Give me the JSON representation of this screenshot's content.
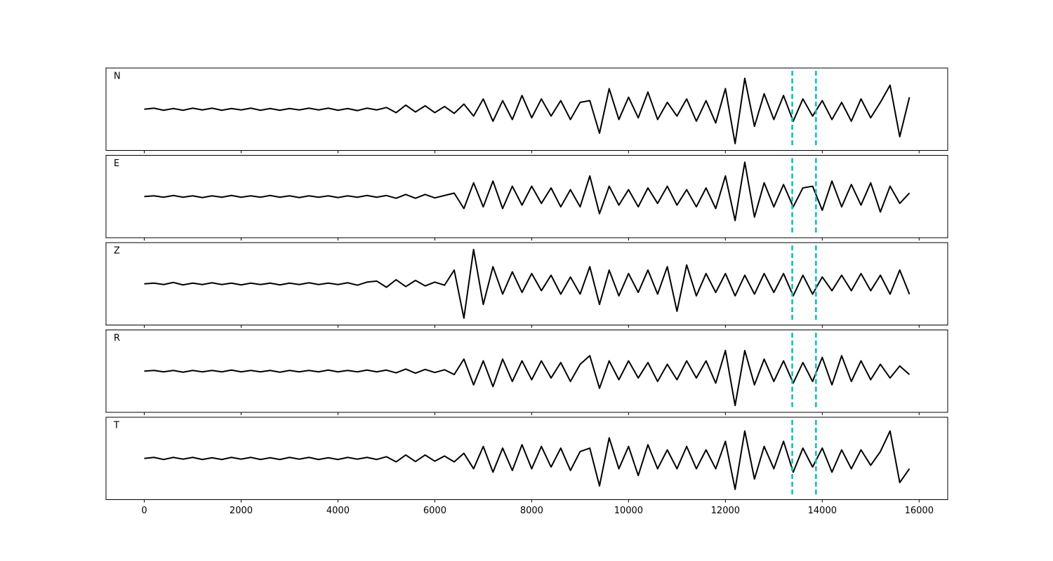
{
  "chart_data": {
    "type": "line",
    "x": [
      0,
      200,
      400,
      600,
      800,
      1000,
      1200,
      1400,
      1600,
      1800,
      2000,
      2200,
      2400,
      2600,
      2800,
      3000,
      3200,
      3400,
      3600,
      3800,
      4000,
      4200,
      4400,
      4600,
      4800,
      5000,
      5200,
      5400,
      5600,
      5800,
      6000,
      6200,
      6400,
      6600,
      6800,
      7000,
      7200,
      7400,
      7600,
      7800,
      8000,
      8200,
      8400,
      8600,
      8800,
      9000,
      9200,
      9400,
      9600,
      9800,
      10000,
      10200,
      10400,
      10600,
      10800,
      11000,
      11200,
      11400,
      11600,
      11800,
      12000,
      12200,
      12400,
      12600,
      12800,
      13000,
      13200,
      13400,
      13600,
      13800,
      14000,
      14200,
      14400,
      14600,
      14800,
      15000,
      15200,
      15400,
      15600,
      15800
    ],
    "series": [
      {
        "name": "N",
        "color": "#000000",
        "values": [
          0.0,
          0.03,
          -0.03,
          0.02,
          -0.03,
          0.03,
          -0.02,
          0.03,
          -0.03,
          0.02,
          -0.02,
          0.03,
          -0.03,
          0.02,
          -0.03,
          0.02,
          -0.02,
          0.03,
          -0.02,
          0.03,
          -0.03,
          0.02,
          -0.04,
          0.03,
          -0.02,
          0.05,
          -0.1,
          0.12,
          -0.08,
          0.1,
          -0.1,
          0.08,
          -0.12,
          0.15,
          -0.2,
          0.3,
          -0.35,
          0.25,
          -0.3,
          0.4,
          -0.25,
          0.3,
          -0.2,
          0.25,
          -0.3,
          0.2,
          0.25,
          -0.7,
          0.6,
          -0.3,
          0.35,
          -0.25,
          0.5,
          -0.3,
          0.2,
          -0.2,
          0.3,
          -0.35,
          0.25,
          -0.4,
          0.6,
          -1.0,
          0.9,
          -0.5,
          0.45,
          -0.3,
          0.4,
          -0.35,
          0.3,
          -0.2,
          0.25,
          -0.3,
          0.2,
          -0.35,
          0.3,
          -0.25,
          0.2,
          0.7,
          -0.8,
          0.35
        ]
      },
      {
        "name": "E",
        "color": "#000000",
        "values": [
          0.0,
          0.02,
          -0.02,
          0.03,
          -0.02,
          0.02,
          -0.03,
          0.02,
          -0.02,
          0.03,
          -0.02,
          0.02,
          -0.02,
          0.03,
          -0.02,
          0.02,
          -0.03,
          0.02,
          -0.02,
          0.02,
          -0.03,
          0.02,
          -0.02,
          0.03,
          -0.02,
          0.03,
          -0.05,
          0.06,
          -0.05,
          0.06,
          -0.04,
          0.03,
          0.1,
          -0.35,
          0.4,
          -0.3,
          0.45,
          -0.35,
          0.3,
          -0.25,
          0.3,
          -0.2,
          0.25,
          -0.3,
          0.2,
          -0.3,
          0.6,
          -0.5,
          0.3,
          -0.25,
          0.2,
          -0.3,
          0.25,
          -0.2,
          0.3,
          -0.25,
          0.2,
          -0.3,
          0.25,
          -0.35,
          0.6,
          -0.7,
          1.0,
          -0.6,
          0.4,
          -0.3,
          0.35,
          -0.3,
          0.25,
          0.3,
          -0.4,
          0.45,
          -0.3,
          0.35,
          -0.25,
          0.4,
          -0.45,
          0.3,
          -0.2,
          0.1
        ]
      },
      {
        "name": "Z",
        "color": "#000000",
        "values": [
          0.0,
          0.02,
          -0.02,
          0.04,
          -0.03,
          0.02,
          -0.02,
          0.03,
          -0.02,
          0.02,
          -0.03,
          0.02,
          -0.02,
          0.02,
          -0.03,
          0.02,
          -0.02,
          0.03,
          -0.02,
          0.02,
          -0.02,
          0.03,
          -0.04,
          0.05,
          0.08,
          -0.1,
          0.12,
          -0.08,
          0.1,
          -0.06,
          0.05,
          -0.04,
          0.4,
          -1.0,
          1.0,
          -0.6,
          0.5,
          -0.3,
          0.35,
          -0.25,
          0.3,
          -0.2,
          0.25,
          -0.3,
          0.2,
          -0.3,
          0.5,
          -0.6,
          0.4,
          -0.35,
          0.3,
          -0.25,
          0.4,
          -0.3,
          0.5,
          -0.8,
          0.55,
          -0.35,
          0.3,
          -0.25,
          0.3,
          -0.35,
          0.25,
          -0.3,
          0.3,
          -0.25,
          0.3,
          -0.35,
          0.25,
          -0.3,
          0.2,
          -0.2,
          0.25,
          -0.2,
          0.3,
          -0.2,
          0.25,
          -0.3,
          0.4,
          -0.3
        ]
      },
      {
        "name": "R",
        "color": "#000000",
        "values": [
          0.0,
          0.02,
          -0.02,
          0.02,
          -0.03,
          0.02,
          -0.02,
          0.02,
          -0.02,
          0.03,
          -0.02,
          0.02,
          -0.02,
          0.02,
          -0.03,
          0.02,
          -0.02,
          0.02,
          -0.02,
          0.03,
          -0.02,
          0.02,
          -0.02,
          0.03,
          -0.02,
          0.03,
          -0.05,
          0.06,
          -0.06,
          0.05,
          -0.04,
          0.04,
          -0.1,
          0.35,
          -0.4,
          0.3,
          -0.45,
          0.35,
          -0.3,
          0.3,
          -0.25,
          0.3,
          -0.2,
          0.25,
          -0.3,
          0.2,
          0.45,
          -0.5,
          0.3,
          -0.25,
          0.3,
          -0.2,
          0.25,
          -0.3,
          0.2,
          -0.25,
          0.3,
          -0.2,
          0.3,
          -0.35,
          0.6,
          -1.0,
          0.6,
          -0.4,
          0.35,
          -0.3,
          0.3,
          -0.35,
          0.25,
          -0.3,
          0.4,
          -0.4,
          0.45,
          -0.3,
          0.3,
          -0.25,
          0.2,
          -0.2,
          0.15,
          -0.1
        ]
      },
      {
        "name": "T",
        "color": "#000000",
        "values": [
          0.0,
          0.03,
          -0.03,
          0.03,
          -0.02,
          0.03,
          -0.03,
          0.02,
          -0.03,
          0.03,
          -0.02,
          0.03,
          -0.03,
          0.02,
          -0.03,
          0.03,
          -0.02,
          0.03,
          -0.03,
          0.02,
          -0.03,
          0.03,
          -0.02,
          0.03,
          -0.03,
          0.05,
          -0.1,
          0.1,
          -0.09,
          0.1,
          -0.08,
          0.07,
          -0.1,
          0.15,
          -0.3,
          0.35,
          -0.4,
          0.3,
          -0.35,
          0.4,
          -0.3,
          0.35,
          -0.25,
          0.3,
          -0.35,
          0.2,
          0.3,
          -0.8,
          0.6,
          -0.3,
          0.35,
          -0.5,
          0.4,
          -0.3,
          0.25,
          -0.3,
          0.35,
          -0.3,
          0.25,
          -0.3,
          0.5,
          -0.9,
          0.8,
          -0.6,
          0.35,
          -0.3,
          0.5,
          -0.4,
          0.3,
          -0.25,
          0.3,
          -0.4,
          0.25,
          -0.3,
          0.25,
          -0.2,
          0.2,
          0.8,
          -0.7,
          -0.3
        ]
      }
    ],
    "xlim": [
      -790,
      16590
    ],
    "xticks": [
      0,
      2000,
      4000,
      6000,
      8000,
      10000,
      12000,
      14000,
      16000
    ],
    "ylim": [
      -1.2,
      1.2
    ],
    "vlines": [
      13380,
      13870
    ],
    "vline_color": "#00bfbf"
  }
}
